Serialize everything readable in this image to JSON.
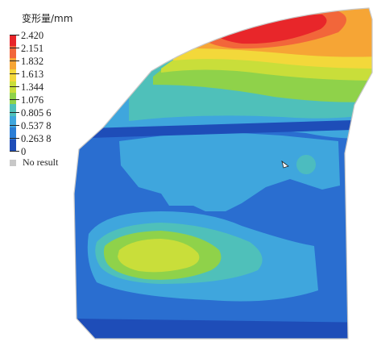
{
  "legend": {
    "title": "变形量/mm",
    "ticks": [
      "2.420",
      "2.151",
      "1.832",
      "1.613",
      "1.344",
      "1.076",
      "0.805 6",
      "0.537 8",
      "0.263 8",
      "0"
    ],
    "colors": [
      "#e8262a",
      "#f2663a",
      "#f6a535",
      "#f3d83a",
      "#c9de3a",
      "#8fd24a",
      "#4fc0ba",
      "#3fa6dd",
      "#2a7ed6",
      "#1e4db8"
    ],
    "no_result_label": "No result",
    "no_result_color": "#c8c8c8"
  }
}
